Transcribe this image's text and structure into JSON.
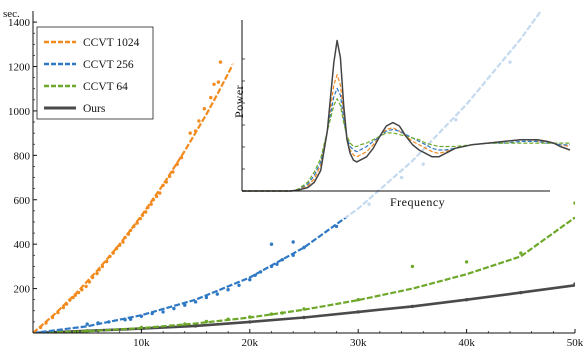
{
  "chart_data": [
    {
      "type": "scatter",
      "ylabel": "sec.",
      "xlim": [
        0,
        50000
      ],
      "ylim": [
        0,
        1450
      ],
      "x_ticks": [
        {
          "value": 10000,
          "label": "10k"
        },
        {
          "value": 20000,
          "label": "20k"
        },
        {
          "value": 30000,
          "label": "30k"
        },
        {
          "value": 40000,
          "label": "40k"
        },
        {
          "value": 50000,
          "label": "50k"
        }
      ],
      "y_ticks": [
        {
          "value": 200,
          "label": "200"
        },
        {
          "value": 400,
          "label": "400"
        },
        {
          "value": 600,
          "label": "600"
        },
        {
          "value": 800,
          "label": "800"
        },
        {
          "value": 1000,
          "label": "1000"
        },
        {
          "value": 1200,
          "label": "1200"
        },
        {
          "value": 1400,
          "label": "1400"
        }
      ],
      "grid": false,
      "legend_position": "top-left",
      "series": [
        {
          "name": "CCVT 1024",
          "color": "#f28a1e",
          "style": "dashed",
          "curve_x": [
            0,
            2000,
            4000,
            6000,
            8000,
            10000,
            12000,
            14000,
            16000,
            17000,
            18000,
            18500
          ],
          "curve_y": [
            0,
            85,
            180,
            285,
            400,
            528,
            668,
            820,
            985,
            1075,
            1168,
            1215
          ],
          "points": [
            [
              700,
              25
            ],
            [
              1200,
              45
            ],
            [
              1800,
              70
            ],
            [
              2300,
              92
            ],
            [
              2800,
              115
            ],
            [
              3100,
              130
            ],
            [
              3400,
              148
            ],
            [
              3700,
              160
            ],
            [
              3900,
              170
            ],
            [
              4200,
              182
            ],
            [
              4500,
              195
            ],
            [
              4900,
              210
            ],
            [
              5200,
              230
            ],
            [
              5500,
              250
            ],
            [
              5900,
              268
            ],
            [
              6100,
              285
            ],
            [
              6400,
              300
            ],
            [
              6800,
              322
            ],
            [
              7100,
              345
            ],
            [
              7400,
              360
            ],
            [
              7700,
              380
            ],
            [
              8000,
              395
            ],
            [
              8300,
              410
            ],
            [
              8500,
              430
            ],
            [
              8800,
              445
            ],
            [
              9000,
              462
            ],
            [
              9300,
              480
            ],
            [
              9600,
              495
            ],
            [
              9900,
              515
            ],
            [
              10100,
              530
            ],
            [
              10400,
              545
            ],
            [
              10600,
              565
            ],
            [
              10900,
              580
            ],
            [
              11100,
              600
            ],
            [
              11400,
              615
            ],
            [
              11700,
              630
            ],
            [
              12000,
              665
            ],
            [
              12300,
              680
            ],
            [
              12600,
              705
            ],
            [
              12900,
              725
            ],
            [
              13300,
              760
            ],
            [
              13700,
              790
            ],
            [
              14500,
              900
            ],
            [
              15000,
              910
            ],
            [
              15300,
              955
            ],
            [
              15800,
              1010
            ],
            [
              16400,
              1060
            ],
            [
              16700,
              1120
            ],
            [
              17100,
              1130
            ],
            [
              17300,
              1220
            ]
          ]
        },
        {
          "name": "CCVT 256",
          "color": "#2f79c4",
          "style": "dashed",
          "curve_x": [
            0,
            5000,
            10000,
            15000,
            20000,
            25000,
            30000,
            35000,
            40000,
            45000,
            47000
          ],
          "curve_y": [
            0,
            30,
            80,
            150,
            250,
            385,
            560,
            775,
            1030,
            1325,
            1460
          ],
          "points": [
            [
              5000,
              40
            ],
            [
              6000,
              45
            ],
            [
              7000,
              50
            ],
            [
              8500,
              60
            ],
            [
              9000,
              62
            ],
            [
              10000,
              75
            ],
            [
              11000,
              88
            ],
            [
              12000,
              95
            ],
            [
              13000,
              110
            ],
            [
              14000,
              125
            ],
            [
              15000,
              140
            ],
            [
              16000,
              160
            ],
            [
              17000,
              175
            ],
            [
              18000,
              195
            ],
            [
              19000,
              215
            ],
            [
              20000,
              240
            ],
            [
              20500,
              260
            ],
            [
              21000,
              275
            ],
            [
              22000,
              300
            ],
            [
              22500,
              310
            ],
            [
              23000,
              330
            ],
            [
              24000,
              350
            ],
            [
              25000,
              385
            ],
            [
              22000,
              400
            ],
            [
              24000,
              410
            ],
            [
              28000,
              480
            ],
            [
              31000,
              580
            ],
            [
              34000,
              700
            ],
            [
              36000,
              760
            ],
            [
              39000,
              960
            ],
            [
              44000,
              1220
            ]
          ]
        },
        {
          "name": "CCVT 64",
          "color": "#6ea82a",
          "style": "dashed",
          "curve_x": [
            0,
            5000,
            10000,
            15000,
            20000,
            25000,
            30000,
            35000,
            40000,
            45000,
            50000
          ],
          "curve_y": [
            0,
            8,
            22,
            43,
            70,
            105,
            148,
            200,
            265,
            345,
            520
          ],
          "points": [
            [
              5000,
              10
            ],
            [
              10000,
              25
            ],
            [
              14000,
              40
            ],
            [
              16000,
              52
            ],
            [
              18000,
              62
            ],
            [
              20000,
              72
            ],
            [
              22000,
              85
            ],
            [
              23000,
              90
            ],
            [
              25000,
              108
            ],
            [
              30000,
              150
            ],
            [
              35000,
              300
            ],
            [
              40000,
              320
            ],
            [
              45000,
              360
            ],
            [
              50000,
              585
            ]
          ]
        },
        {
          "name": "Ours",
          "color": "#4a4a4a",
          "style": "solid",
          "curve_x": [
            0,
            5000,
            10000,
            15000,
            20000,
            25000,
            30000,
            35000,
            40000,
            45000,
            50000
          ],
          "curve_y": [
            0,
            10,
            20,
            32,
            50,
            70,
            95,
            120,
            150,
            182,
            215
          ],
          "points": [
            [
              5000,
              10
            ],
            [
              10000,
              20
            ],
            [
              15000,
              32
            ],
            [
              20000,
              50
            ],
            [
              25000,
              70
            ],
            [
              30000,
              95
            ],
            [
              35000,
              120
            ],
            [
              40000,
              150
            ],
            [
              45000,
              182
            ],
            [
              50000,
              220
            ]
          ]
        }
      ]
    },
    {
      "type": "line",
      "xlabel": "Frequency",
      "ylabel": "Power",
      "grid": false,
      "xlim": [
        0,
        100
      ],
      "ylim": [
        0,
        100
      ],
      "series": [
        {
          "name": "Ours",
          "color": "#444444",
          "style": "solid",
          "x": [
            0,
            12,
            15,
            17,
            20,
            22,
            24,
            26,
            28,
            29,
            30,
            31,
            32,
            33,
            34,
            35,
            36,
            38,
            40,
            42,
            44,
            46,
            48,
            50,
            52,
            54,
            56,
            58,
            60,
            62,
            65,
            70,
            75,
            80,
            85,
            88,
            90,
            93,
            95,
            97,
            100
          ],
          "y": [
            0,
            0,
            0,
            0.5,
            2,
            5,
            12,
            35,
            75,
            88,
            78,
            50,
            30,
            22,
            18,
            17,
            18,
            20,
            25,
            32,
            38,
            40,
            38,
            32,
            27,
            24,
            22,
            20,
            20,
            22,
            25,
            27,
            28,
            29,
            30,
            30,
            30,
            29,
            28,
            26,
            24
          ]
        },
        {
          "name": "CCVT 1024",
          "color": "#f28a1e",
          "style": "dashed",
          "x": [
            0,
            12,
            15,
            17,
            20,
            22,
            24,
            26,
            28,
            29,
            30,
            31,
            32,
            33,
            34,
            35,
            36,
            38,
            40,
            42,
            44,
            46,
            48,
            50,
            52,
            54,
            56,
            58,
            60,
            62,
            65,
            70,
            75,
            80,
            85,
            88,
            90,
            93,
            95,
            97,
            100
          ],
          "y": [
            0,
            0,
            0,
            1,
            3,
            7,
            15,
            35,
            62,
            68,
            62,
            45,
            30,
            24,
            21,
            20,
            21,
            23,
            27,
            32,
            36,
            37,
            35,
            32,
            29,
            27,
            25,
            23,
            22,
            23,
            25,
            27,
            28,
            29,
            30,
            30,
            29,
            29,
            28,
            27,
            26
          ]
        },
        {
          "name": "CCVT 256",
          "color": "#2f79c4",
          "style": "dashed",
          "x": [
            0,
            12,
            15,
            17,
            20,
            22,
            24,
            26,
            28,
            29,
            30,
            31,
            32,
            33,
            34,
            35,
            36,
            38,
            40,
            42,
            44,
            46,
            48,
            50,
            52,
            54,
            56,
            58,
            60,
            62,
            65,
            70,
            75,
            80,
            85,
            88,
            90,
            93,
            95,
            97,
            100
          ],
          "y": [
            0,
            0,
            0,
            1,
            4,
            9,
            17,
            35,
            55,
            60,
            56,
            42,
            31,
            26,
            24,
            23,
            24,
            26,
            29,
            32,
            35,
            36,
            35,
            33,
            31,
            29,
            27,
            25,
            24,
            24,
            25,
            27,
            28,
            28,
            29,
            29,
            29,
            28,
            28,
            27,
            27
          ]
        },
        {
          "name": "CCVT 64",
          "color": "#6ea82a",
          "style": "dashed",
          "x": [
            0,
            12,
            15,
            17,
            20,
            22,
            24,
            26,
            28,
            29,
            30,
            31,
            32,
            33,
            34,
            35,
            36,
            38,
            40,
            42,
            44,
            46,
            48,
            50,
            52,
            54,
            56,
            58,
            60,
            62,
            65,
            70,
            75,
            80,
            85,
            88,
            90,
            93,
            95,
            97,
            100
          ],
          "y": [
            0,
            0,
            0,
            1,
            5,
            11,
            19,
            35,
            50,
            54,
            50,
            40,
            32,
            28,
            26,
            26,
            27,
            28,
            30,
            32,
            34,
            34,
            33,
            32,
            31,
            30,
            28,
            27,
            26,
            26,
            26,
            27,
            28,
            28,
            28,
            28,
            28,
            28,
            28,
            28,
            28
          ]
        }
      ]
    }
  ]
}
